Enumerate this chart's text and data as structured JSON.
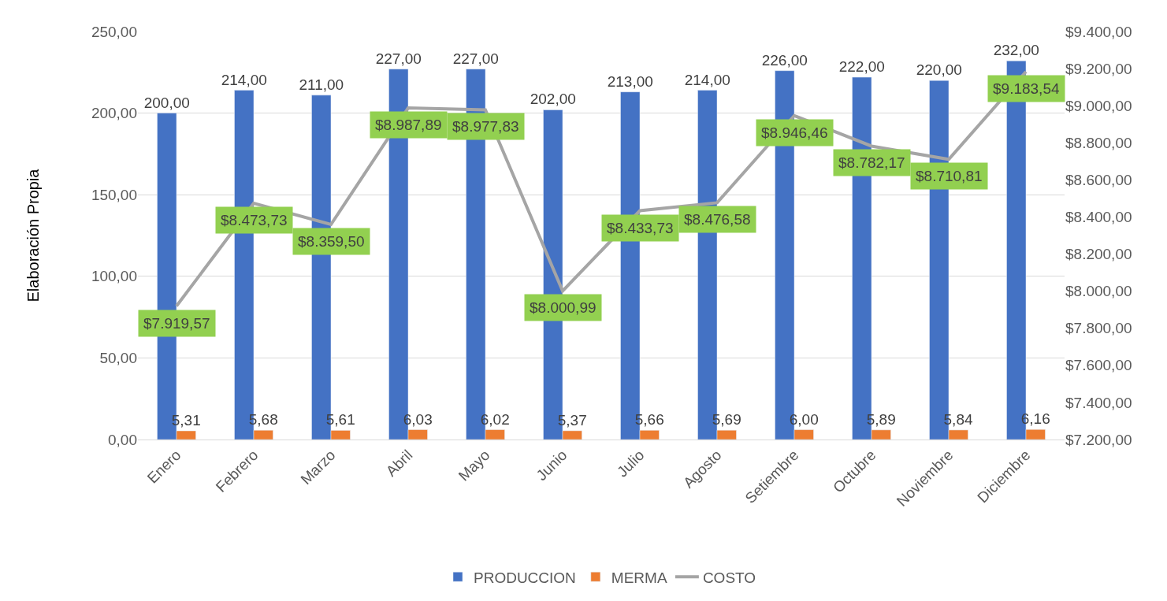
{
  "chart_data": {
    "type": "bar",
    "ylabel": "Elaboración Propia",
    "categories": [
      "Enero",
      "Febrero",
      "Marzo",
      "Abril",
      "Mayo",
      "Junio",
      "Julio",
      "Agosto",
      "Setiembre",
      "Octubre",
      "Noviembre",
      "Diciembre"
    ],
    "series": [
      {
        "name": "PRODUCCION",
        "color": "#4472c4",
        "values": [
          200,
          214,
          211,
          227,
          227,
          202,
          213,
          214,
          226,
          222,
          220,
          232
        ],
        "value_labels": [
          "200,00",
          "214,00",
          "211,00",
          "227,00",
          "227,00",
          "202,00",
          "213,00",
          "214,00",
          "226,00",
          "222,00",
          "220,00",
          "232,00"
        ]
      },
      {
        "name": "MERMA",
        "color": "#ed7d31",
        "values": [
          5.31,
          5.68,
          5.61,
          6.03,
          6.02,
          5.37,
          5.66,
          5.69,
          6.0,
          5.89,
          5.84,
          6.16
        ],
        "value_labels": [
          "5,31",
          "5,68",
          "5,61",
          "6,03",
          "6,02",
          "5,37",
          "5,66",
          "5,69",
          "6,00",
          "5,89",
          "5,84",
          "6,16"
        ]
      },
      {
        "name": "COSTO",
        "type": "line",
        "axis": "y2",
        "color": "#a5a5a5",
        "values": [
          7919.57,
          8473.73,
          8359.5,
          8987.89,
          8977.83,
          8000.99,
          8433.73,
          8476.58,
          8946.46,
          8782.17,
          8710.81,
          9183.54
        ],
        "value_labels": [
          "$7.919,57",
          "$8.473,73",
          "$8.359,50",
          "$8.987,89",
          "$8.977,83",
          "$8.000,99",
          "$8.433,73",
          "$8.476,58",
          "$8.946,46",
          "$8.782,17",
          "$8.710,81",
          "$9.183,54"
        ]
      }
    ],
    "ylim": [
      0,
      250
    ],
    "yticks": [
      {
        "value": 0,
        "label": "0,00"
      },
      {
        "value": 50,
        "label": "50,00"
      },
      {
        "value": 100,
        "label": "100,00"
      },
      {
        "value": 150,
        "label": "150,00"
      },
      {
        "value": 200,
        "label": "200,00"
      },
      {
        "value": 250,
        "label": "250,00"
      }
    ],
    "y2lim": [
      7200,
      9400
    ],
    "y2ticks": [
      {
        "value": 7200,
        "label": "$7.200,00"
      },
      {
        "value": 7400,
        "label": "$7.400,00"
      },
      {
        "value": 7600,
        "label": "$7.600,00"
      },
      {
        "value": 7800,
        "label": "$7.800,00"
      },
      {
        "value": 8000,
        "label": "$8.000,00"
      },
      {
        "value": 8200,
        "label": "$8.200,00"
      },
      {
        "value": 8400,
        "label": "$8.400,00"
      },
      {
        "value": 8600,
        "label": "$8.600,00"
      },
      {
        "value": 8800,
        "label": "$8.800,00"
      },
      {
        "value": 9000,
        "label": "$9.000,00"
      },
      {
        "value": 9200,
        "label": "$9.200,00"
      },
      {
        "value": 9400,
        "label": "$9.400,00"
      }
    ],
    "grid": "y",
    "legend": "bottom",
    "marker": "none",
    "line_style": "solid"
  }
}
